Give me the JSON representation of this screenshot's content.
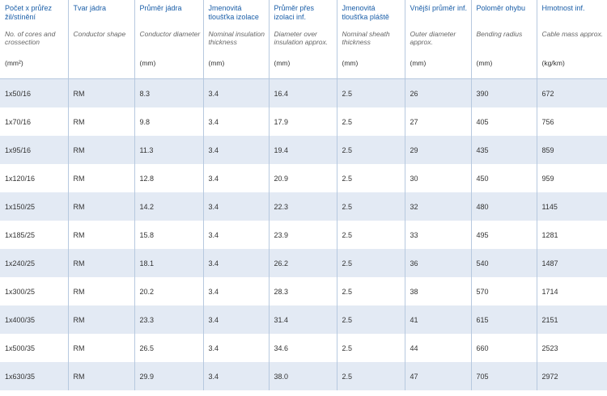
{
  "columns": [
    {
      "cz": "Počet x průřez žil/stínění",
      "en": "No. of cores and crossection",
      "unit": "(mm²)"
    },
    {
      "cz": "Tvar jádra",
      "en": "Conductor shape",
      "unit": ""
    },
    {
      "cz": "Průměr jádra",
      "en": "Conductor diameter",
      "unit": "(mm)"
    },
    {
      "cz": "Jmenovitá tloušťka izolace",
      "en": "Nominal insulation thickness",
      "unit": "(mm)"
    },
    {
      "cz": "Průměr přes izolaci inf.",
      "en": "Diameter over insulation approx.",
      "unit": "(mm)"
    },
    {
      "cz": "Jmenovitá tloušťka pláště",
      "en": "Nominal sheath thickness",
      "unit": "(mm)"
    },
    {
      "cz": "Vnější průměr inf.",
      "en": "Outer diameter approx.",
      "unit": "(mm)"
    },
    {
      "cz": "Poloměr ohybu",
      "en": "Bending radius",
      "unit": "(mm)"
    },
    {
      "cz": "Hmotnost inf.",
      "en": "Cable mass approx.",
      "unit": "(kg/km)"
    }
  ],
  "rows": [
    [
      "1x50/16",
      "RM",
      "8.3",
      "3.4",
      "16.4",
      "2.5",
      "26",
      "390",
      "672"
    ],
    [
      "1x70/16",
      "RM",
      "9.8",
      "3.4",
      "17.9",
      "2.5",
      "27",
      "405",
      "756"
    ],
    [
      "1x95/16",
      "RM",
      "11.3",
      "3.4",
      "19.4",
      "2.5",
      "29",
      "435",
      "859"
    ],
    [
      "1x120/16",
      "RM",
      "12.8",
      "3.4",
      "20.9",
      "2.5",
      "30",
      "450",
      "959"
    ],
    [
      "1x150/25",
      "RM",
      "14.2",
      "3.4",
      "22.3",
      "2.5",
      "32",
      "480",
      "1145"
    ],
    [
      "1x185/25",
      "RM",
      "15.8",
      "3.4",
      "23.9",
      "2.5",
      "33",
      "495",
      "1281"
    ],
    [
      "1x240/25",
      "RM",
      "18.1",
      "3.4",
      "26.2",
      "2.5",
      "36",
      "540",
      "1487"
    ],
    [
      "1x300/25",
      "RM",
      "20.2",
      "3.4",
      "28.3",
      "2.5",
      "38",
      "570",
      "1714"
    ],
    [
      "1x400/35",
      "RM",
      "23.3",
      "3.4",
      "31.4",
      "2.5",
      "41",
      "615",
      "2151"
    ],
    [
      "1x500/35",
      "RM",
      "26.5",
      "3.4",
      "34.6",
      "2.5",
      "44",
      "660",
      "2523"
    ],
    [
      "1x630/35",
      "RM",
      "29.9",
      "3.4",
      "38.0",
      "2.5",
      "47",
      "705",
      "2972"
    ]
  ]
}
